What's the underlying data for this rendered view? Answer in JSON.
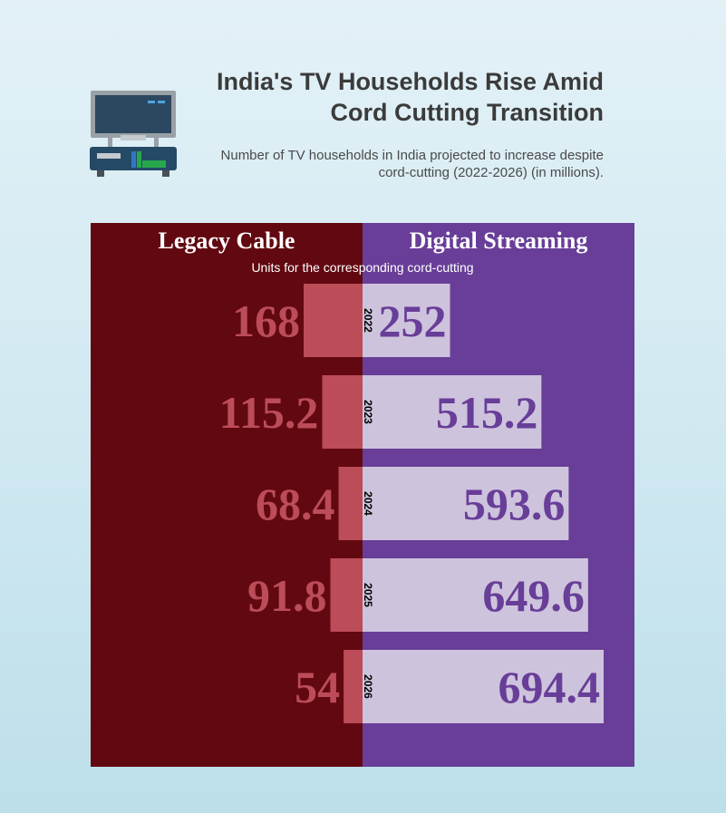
{
  "header": {
    "title_line1": "India's TV Households Rise Amid",
    "title_line2": "Cord Cutting Transition",
    "subtitle_line1": "Number of TV households in India projected to increase despite",
    "subtitle_line2": "cord-cutting (2022-2026) (in millions)."
  },
  "icon": "television-on-stand-icon",
  "colors": {
    "legacy_panel": "#620810",
    "legacy_bar": "#bb4c58",
    "streaming_panel": "#683e98",
    "streaming_bar": "#cec3dd"
  },
  "chart_data": {
    "type": "bar",
    "layout": "diverging",
    "categories": [
      "2022",
      "2023",
      "2024",
      "2025",
      "2026"
    ],
    "series": [
      {
        "name": "Legacy Cable",
        "values": [
          168,
          115.2,
          68.4,
          91.8,
          54
        ]
      },
      {
        "name": "Digital Streaming",
        "values": [
          252,
          515.2,
          593.6,
          649.6,
          694.4
        ]
      }
    ],
    "value_labels": {
      "legacy": [
        "168",
        "115.2",
        "68.4",
        "91.8",
        "54"
      ],
      "streaming": [
        "252",
        "515.2",
        "593.6",
        "649.6",
        "694.4"
      ]
    },
    "annotation": "Units for the corresponding cord-cutting"
  }
}
